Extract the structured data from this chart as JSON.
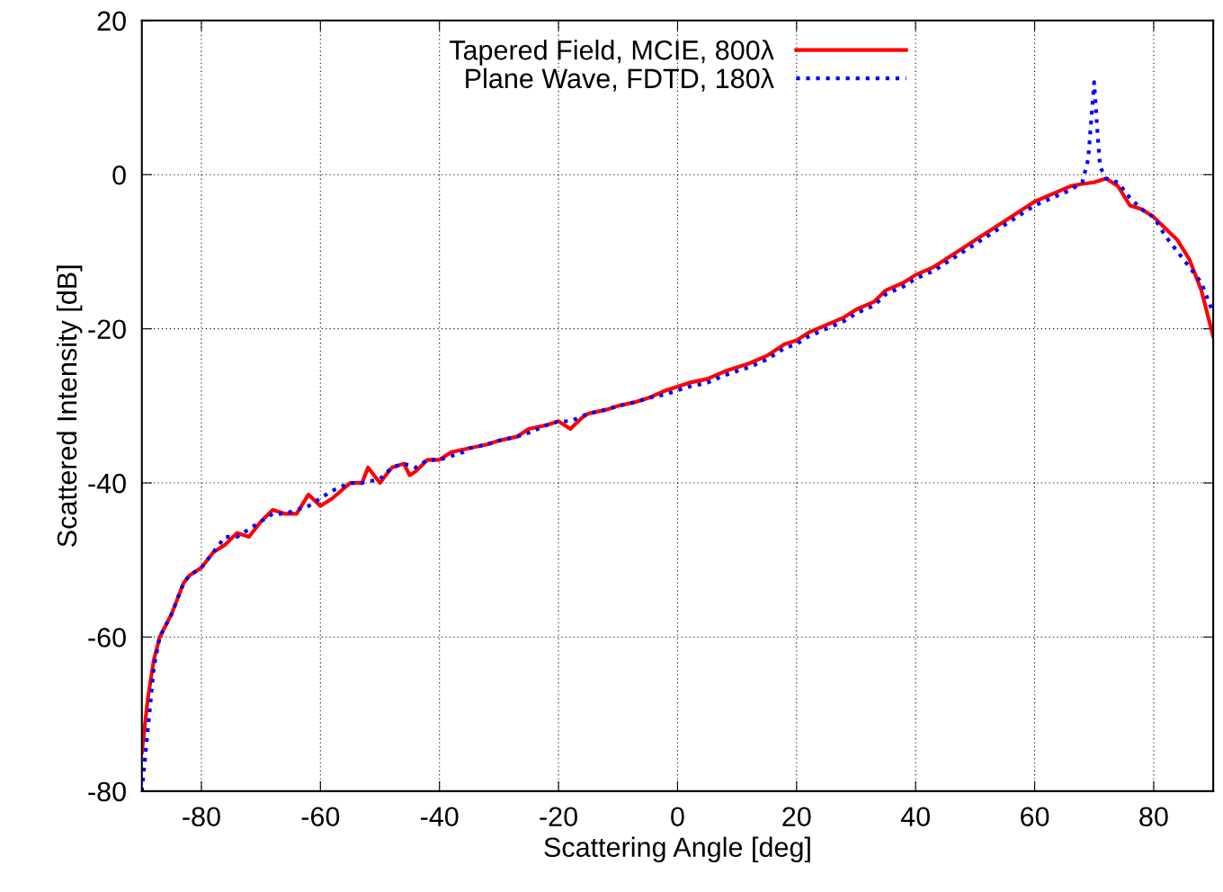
{
  "chart_data": {
    "type": "line",
    "xlabel": "Scattering Angle [deg]",
    "ylabel": "Scattered Intensity [dB]",
    "xlim": [
      -90,
      90
    ],
    "ylim": [
      -80,
      20
    ],
    "xticks": [
      -80,
      -60,
      -40,
      -20,
      0,
      20,
      40,
      60,
      80
    ],
    "yticks": [
      -80,
      -60,
      -40,
      -20,
      0,
      20
    ],
    "grid": true,
    "legend": "top",
    "series": [
      {
        "name": "Tapered Field, MCIE, 800λ",
        "color": "#ff0000",
        "line_style": "solid",
        "x": [
          -90,
          -89,
          -88,
          -87,
          -85,
          -83,
          -82,
          -80,
          -78,
          -76,
          -74,
          -72,
          -70,
          -68,
          -66,
          -64,
          -62,
          -60,
          -58,
          -55,
          -53,
          -52,
          -50,
          -48,
          -46,
          -45,
          -44,
          -42,
          -40,
          -38,
          -35,
          -32,
          -30,
          -27,
          -25,
          -22,
          -20,
          -18,
          -16,
          -15,
          -12,
          -10,
          -7,
          -5,
          -2,
          0,
          2,
          5,
          8,
          10,
          12,
          15,
          18,
          20,
          22,
          25,
          28,
          30,
          33,
          35,
          38,
          40,
          43,
          45,
          48,
          50,
          53,
          55,
          58,
          60,
          63,
          66,
          68,
          70,
          72,
          74,
          76,
          78,
          80,
          82,
          84,
          86,
          88,
          90
        ],
        "values": [
          -75,
          -68,
          -63,
          -60,
          -57,
          -53,
          -52,
          -51,
          -49,
          -48,
          -46.5,
          -47,
          -45,
          -43.5,
          -44,
          -44,
          -41.5,
          -43,
          -42,
          -40,
          -40,
          -38,
          -40,
          -38,
          -37.5,
          -39,
          -38.5,
          -37,
          -37,
          -36,
          -35.5,
          -35,
          -34.5,
          -34,
          -33,
          -32.5,
          -32,
          -33,
          -31.5,
          -31,
          -30.5,
          -30,
          -29.5,
          -29,
          -28,
          -27.5,
          -27,
          -26.5,
          -25.5,
          -25,
          -24.5,
          -23.5,
          -22,
          -21.5,
          -20.5,
          -19.5,
          -18.5,
          -17.5,
          -16.5,
          -15,
          -14,
          -13,
          -12,
          -11,
          -9.5,
          -8.5,
          -7,
          -6,
          -4.5,
          -3.5,
          -2.5,
          -1.5,
          -1.2,
          -1,
          -0.5,
          -1.5,
          -4,
          -4.5,
          -5.5,
          -7,
          -8.5,
          -11,
          -15,
          -21
        ]
      },
      {
        "name": "Plane Wave, FDTD, 180λ",
        "color": "#0000ff",
        "line_style": "dotted",
        "x": [
          -90,
          -89,
          -88,
          -87,
          -85,
          -83,
          -82,
          -80,
          -78,
          -76,
          -74,
          -72,
          -70,
          -68,
          -66,
          -64,
          -62,
          -60,
          -58,
          -55,
          -53,
          -50,
          -48,
          -46,
          -44,
          -42,
          -40,
          -38,
          -36,
          -35,
          -32,
          -30,
          -27,
          -25,
          -22,
          -20,
          -18,
          -15,
          -12,
          -10,
          -7,
          -5,
          -2,
          0,
          2,
          5,
          8,
          10,
          12,
          15,
          18,
          20,
          22,
          25,
          28,
          30,
          33,
          35,
          38,
          40,
          43,
          45,
          48,
          50,
          53,
          55,
          58,
          60,
          63,
          66,
          68,
          69,
          70,
          70.5,
          71,
          72,
          74,
          76,
          78,
          80,
          82,
          84,
          86,
          88,
          90
        ],
        "values": [
          -80,
          -72,
          -64,
          -60,
          -57,
          -53,
          -52,
          -51,
          -49,
          -47,
          -47,
          -46,
          -45,
          -44,
          -44,
          -43.5,
          -43,
          -42,
          -41,
          -40,
          -40,
          -39.5,
          -38,
          -37.5,
          -38,
          -37,
          -37,
          -36.5,
          -36,
          -35.5,
          -35,
          -34.5,
          -34,
          -33.5,
          -32.5,
          -32,
          -32,
          -31,
          -30.5,
          -30,
          -29.5,
          -29,
          -28.5,
          -28,
          -27.5,
          -27,
          -26,
          -25.5,
          -25,
          -24,
          -22.5,
          -22,
          -21,
          -20,
          -19,
          -18,
          -17,
          -15.5,
          -14.5,
          -13.5,
          -12.5,
          -11.5,
          -10,
          -9,
          -7.5,
          -6.5,
          -5,
          -4,
          -3,
          -2,
          -1,
          2,
          12,
          6,
          1,
          -0.5,
          -1,
          -3,
          -4.5,
          -5.5,
          -8,
          -10,
          -12,
          -14,
          -18
        ]
      }
    ]
  }
}
